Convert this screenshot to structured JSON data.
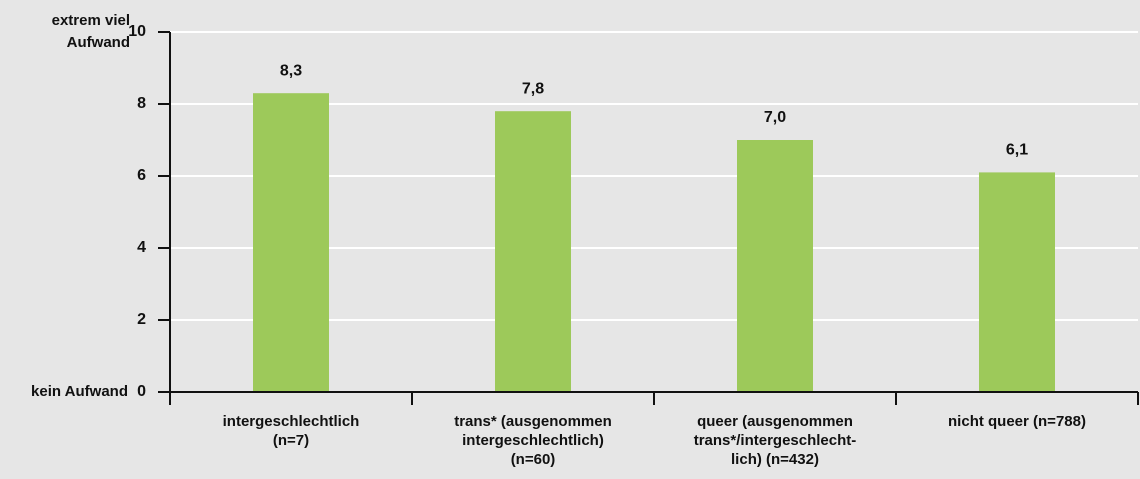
{
  "chart_data": {
    "type": "bar",
    "categories": [
      "intergeschlechtlich\n(n=7)",
      "trans* (ausgenommen\nintergeschlechtlich)\n(n=60)",
      "queer (ausgenommen\ntrans*/intergeschlecht-\nlich) (n=432)",
      "nicht queer (n=788)"
    ],
    "values": [
      8.3,
      7.8,
      7.0,
      6.1
    ],
    "value_labels": [
      "8,3",
      "7,8",
      "7,0",
      "6,1"
    ],
    "color": "#9dc95a",
    "ylim": [
      0,
      10
    ],
    "yticks": [
      0,
      2,
      4,
      6,
      8,
      10
    ],
    "grid": true,
    "y_top_label": "extrem viel\nAufwand",
    "y_bottom_label": "kein Aufwand"
  }
}
